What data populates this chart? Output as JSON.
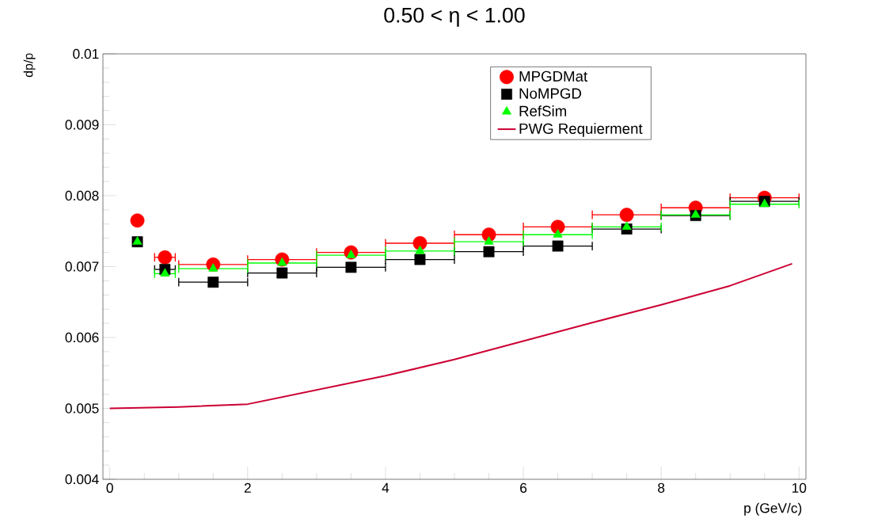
{
  "chart_data": {
    "type": "scatter",
    "title": "0.50 < η < 1.00",
    "xlabel": "p (GeV/c)",
    "ylabel": "dp/p",
    "x": [
      0.4,
      0.8,
      1.5,
      2.5,
      3.5,
      4.5,
      5.5,
      6.5,
      7.5,
      8.5,
      9.5
    ],
    "series": [
      {
        "name": "MPGDMat",
        "color": "#ff0000",
        "marker": "circle",
        "values": [
          0.00765,
          0.00713,
          0.00703,
          0.0071,
          0.0072,
          0.00733,
          0.00745,
          0.00756,
          0.00773,
          0.00783,
          0.00797
        ],
        "xerrors": [
          null,
          0.15,
          0.5,
          0.5,
          0.5,
          0.5,
          0.5,
          0.5,
          0.5,
          0.5,
          0.5
        ]
      },
      {
        "name": "NoMPGD",
        "color": "#000000",
        "marker": "square",
        "values": [
          0.00735,
          0.00696,
          0.00678,
          0.00691,
          0.00699,
          0.0071,
          0.00721,
          0.00729,
          0.00753,
          0.00772,
          0.00792
        ],
        "xerrors": [
          null,
          0.15,
          0.5,
          0.5,
          0.5,
          0.5,
          0.5,
          0.5,
          0.5,
          0.5,
          0.5
        ]
      },
      {
        "name": "RefSim",
        "color": "#00ff00",
        "marker": "triangle",
        "values": [
          0.00735,
          0.0069,
          0.00697,
          0.00705,
          0.00716,
          0.00722,
          0.00735,
          0.00745,
          0.00756,
          0.00773,
          0.00788
        ],
        "xerrors": [
          null,
          0.15,
          0.5,
          0.5,
          0.5,
          0.5,
          0.5,
          0.5,
          0.5,
          0.5,
          0.5
        ]
      },
      {
        "name": "PWG Requierment",
        "type": "line",
        "color": "#cc0033",
        "marker": "none",
        "x": [
          0,
          1,
          2,
          3,
          4,
          5,
          6,
          7,
          8,
          9,
          9.9
        ],
        "values": [
          0.005,
          0.00502,
          0.00506,
          0.00526,
          0.00546,
          0.00569,
          0.00595,
          0.00621,
          0.00646,
          0.00673,
          0.00704
        ]
      }
    ],
    "xlim": [
      -0.1,
      10.1
    ],
    "xticks": [
      0,
      2,
      4,
      6,
      8,
      10
    ],
    "ylim": [
      0.004,
      0.01
    ],
    "yticks": [
      0.004,
      0.005,
      0.006,
      0.007,
      0.008,
      0.009,
      0.01
    ],
    "legend": "top right",
    "grid": false
  }
}
